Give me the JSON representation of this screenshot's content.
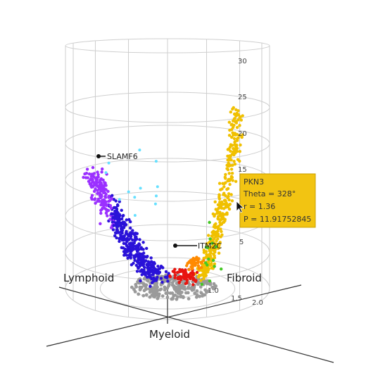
{
  "colors": {
    "lymphoid_light": "#9b30ff",
    "lymphoid_dark": "#2a12d8",
    "cyan_points": "#66e0ff",
    "fibroid": "#f0c000",
    "red": "#e8150f",
    "orange": "#ff8a00",
    "green": "#45c825",
    "grey": "#9a9a9a",
    "tooltip_bg": "#f2c412",
    "tooltip_border": "#caa000",
    "grid": "#cfcfcf",
    "axis": "#333333"
  },
  "chart_data": {
    "type": "scatter",
    "title": "",
    "categories": [
      "Lymphoid",
      "Fibroid",
      "Myeloid"
    ],
    "category_labels": {
      "lymphoid": "Lymphoid",
      "fibroid": "Fibroid",
      "myeloid": "Myeloid"
    },
    "z_ticks": [
      "5",
      "10",
      "15",
      "20",
      "25",
      "30"
    ],
    "z_range": [
      0,
      30
    ],
    "r_ticks": [
      "1.0",
      "1.5",
      "2.0"
    ],
    "r_range": [
      0,
      2.0
    ],
    "grid": true,
    "labeled_points": [
      {
        "gene": "SLAMF6",
        "theta": 140,
        "r": 1.6,
        "p": 16
      },
      {
        "gene": "ITM2C",
        "theta": 300,
        "r": 0.45,
        "p": 5
      }
    ],
    "tooltip": {
      "gene": "PKN3",
      "theta_line": "Theta = 328°",
      "r_line": "r = 1.36",
      "p_line": "P = 11.91752845"
    }
  }
}
